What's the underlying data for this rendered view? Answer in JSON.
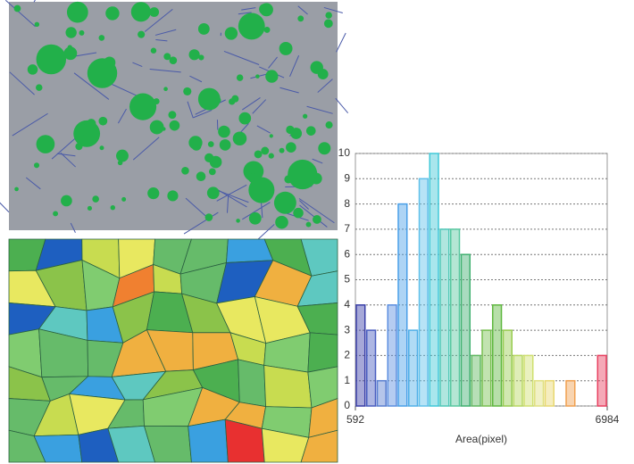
{
  "chart_data": {
    "type": "histogram",
    "bins": [
      592,
      858,
      1125,
      1391,
      1657,
      1924,
      2190,
      2456,
      2723,
      2989,
      3255,
      3522,
      3788,
      4054,
      4321,
      4587,
      4853,
      5120,
      5386,
      5652,
      5919,
      6185,
      6451,
      6718,
      6984
    ],
    "values": [
      4,
      3,
      1,
      4,
      8,
      3,
      9,
      10,
      7,
      7,
      6,
      2,
      3,
      4,
      3,
      2,
      2,
      1,
      1,
      0,
      1,
      0,
      0,
      2
    ],
    "colors": [
      "#3a3fa8",
      "#4a5ec0",
      "#5a7fd0",
      "#5c8fe0",
      "#4aa0e8",
      "#50b0e8",
      "#60c0ea",
      "#40c8d8",
      "#50c8b8",
      "#58c8a0",
      "#40b070",
      "#60b860",
      "#78c050",
      "#60b840",
      "#98cc50",
      "#b8d860",
      "#d0e070",
      "#e0e080",
      "#e8d870",
      "#e8c060",
      "#f0a050",
      "#f08a50",
      "#ee6a60",
      "#e84060"
    ],
    "xlim": [
      592,
      6984
    ],
    "xticks": [
      592,
      6984
    ],
    "ylim": [
      0,
      10
    ],
    "yticks": [
      0,
      1,
      2,
      3,
      4,
      5,
      6,
      7,
      8,
      9,
      10
    ],
    "xlabel": "Area(pixel)",
    "grid": true
  }
}
